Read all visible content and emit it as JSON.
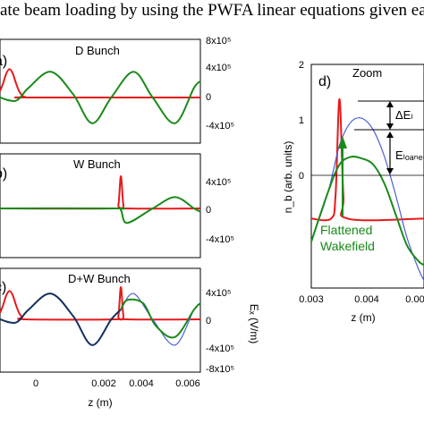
{
  "caption": "ate beam loading by using the PWFA linear equations given ea",
  "colors": {
    "red": "#e8191b",
    "green": "#1a8a1a",
    "navy": "#14305e",
    "blue": "#4b5fd6",
    "black": "#000000"
  },
  "chart_data": [
    {
      "type": "line",
      "panel": "a",
      "panel_label": "a)",
      "title": "D Bunch",
      "xlim": [
        -0.0003,
        0.006
      ],
      "y_right_ticks": [
        "8x10⁵",
        "4x10⁵",
        "0",
        "-4x10⁵"
      ],
      "series": [
        {
          "color": "#e8191b",
          "x": [
            -0.0003,
            -0.0002,
            -0.0001,
            0,
            0.0001,
            0.0002,
            0.0003,
            0.0004,
            0.0005,
            0.0006,
            0.006
          ],
          "y": [
            0.2,
            0.45,
            0.75,
            0.88,
            0.75,
            0.45,
            0.2,
            0.06,
            0.01,
            0,
            0
          ]
        },
        {
          "color": "#1a8a1a",
          "x": [
            -0.0003,
            0.0002,
            0.0006,
            0.0013,
            0.002,
            0.0026,
            0.0032,
            0.0039,
            0.0045,
            0.0052,
            0.0058,
            0.006
          ],
          "y": [
            0,
            -0.1,
            0.3,
            0.8,
            0.1,
            -0.8,
            0,
            0.8,
            0,
            -0.8,
            0.3,
            0.5
          ]
        }
      ]
    },
    {
      "type": "line",
      "panel": "b",
      "panel_label": "b)",
      "title": "W Bunch",
      "xlim": [
        -0.0003,
        0.006
      ],
      "y_right_ticks": [
        "4x10⁵",
        "0",
        "-4x10⁵"
      ],
      "series": [
        {
          "color": "#e8191b",
          "x": [
            -0.0003,
            0.0033,
            0.00342,
            0.0035,
            0.00358,
            0.0037,
            0.006
          ],
          "y": [
            0,
            0,
            0.1,
            1.0,
            0.1,
            0,
            0
          ]
        },
        {
          "color": "#1a8a1a",
          "x": [
            -0.0003,
            0.0033,
            0.0035,
            0.0037,
            0.0045,
            0.0052,
            0.0058,
            0.006
          ],
          "y": [
            0,
            0,
            -0.05,
            -0.45,
            0,
            0.35,
            0,
            -0.1
          ]
        }
      ]
    },
    {
      "type": "line",
      "panel": "c",
      "panel_label": "c)",
      "title": "D+W Bunch",
      "xlabel": "z (m)",
      "ylabel_right": "Eₓ (V/m)",
      "xlim": [
        -0.0003,
        0.006
      ],
      "x_ticks": [
        "0",
        "0.002",
        "0.004",
        "0.006"
      ],
      "y_right_ticks": [
        "4x10⁵",
        "0",
        "-4x10⁵",
        "-8x10⁵"
      ],
      "series": [
        {
          "color": "#e8191b",
          "x": [
            -0.0003,
            -0.0002,
            -0.0001,
            0,
            0.0001,
            0.0002,
            0.0003,
            0.0004,
            0.0005,
            0.0033,
            0.00342,
            0.0035,
            0.00358,
            0.0037,
            0.006
          ],
          "y": [
            0.2,
            0.45,
            0.75,
            0.88,
            0.75,
            0.45,
            0.2,
            0.06,
            0,
            0,
            0.1,
            1.0,
            0.1,
            0,
            0
          ]
        },
        {
          "color": "#14305e",
          "x": [
            -0.0003,
            0.0002,
            0.0006,
            0.0013,
            0.002,
            0.0026,
            0.0032,
            0.0035
          ],
          "y": [
            0,
            -0.1,
            0.3,
            0.8,
            0.1,
            -0.8,
            0,
            0.3
          ]
        },
        {
          "color": "#4b5fd6",
          "x": [
            0.0035,
            0.0039,
            0.0045,
            0.0052,
            0.0058,
            0.006
          ],
          "y": [
            0.3,
            0.8,
            0,
            -0.8,
            0.3,
            0.5
          ]
        },
        {
          "color": "#1a8a1a",
          "x": [
            0.0035,
            0.0037,
            0.0042,
            0.0046,
            0.0052,
            0.0058,
            0.006
          ],
          "y": [
            0.3,
            0.6,
            0.5,
            -0.2,
            -0.55,
            0.3,
            0.5
          ]
        }
      ]
    },
    {
      "type": "line",
      "panel": "d",
      "panel_label": "d)",
      "title": "Zoom",
      "xlabel": "z (m)",
      "ylabel": "n_b (arb. units)",
      "xlim": [
        0.003,
        0.005
      ],
      "ylim": [
        -0.9,
        2
      ],
      "x_ticks": [
        "0.003",
        "0.004",
        "0.00"
      ],
      "y_ticks": [
        "2",
        "1",
        "0"
      ],
      "annotations": [
        "ΔEₗ",
        "Eₗₒₐₙₑₙ",
        "Flattened",
        "Wakefield"
      ],
      "series": [
        {
          "color": "#e8191b",
          "x": [
            0.003,
            0.00335,
            0.00343,
            0.0035,
            0.00357,
            0.00365,
            0.005
          ],
          "y": [
            0,
            0,
            0.3,
            1.55,
            0.3,
            0,
            0
          ]
        },
        {
          "color": "#4b5fd6",
          "x": [
            0.003,
            0.0033,
            0.0035,
            0.0037,
            0.0039,
            0.0041,
            0.0043,
            0.0045,
            0.0047,
            0.0049,
            0.005
          ],
          "y": [
            -0.3,
            0.35,
            0.95,
            1.25,
            1.3,
            1.15,
            0.8,
            0.3,
            -0.25,
            -0.65,
            -0.8
          ]
        },
        {
          "color": "#1a8a1a",
          "x": [
            0.003,
            0.0033,
            0.0035,
            0.0037,
            0.0039,
            0.0041,
            0.0043,
            0.0045,
            0.0047,
            0.0049,
            0.005
          ],
          "y": [
            -0.3,
            0.35,
            0.7,
            0.8,
            0.78,
            0.7,
            0.45,
            0.05,
            -0.35,
            -0.55,
            -0.6
          ]
        }
      ]
    }
  ]
}
